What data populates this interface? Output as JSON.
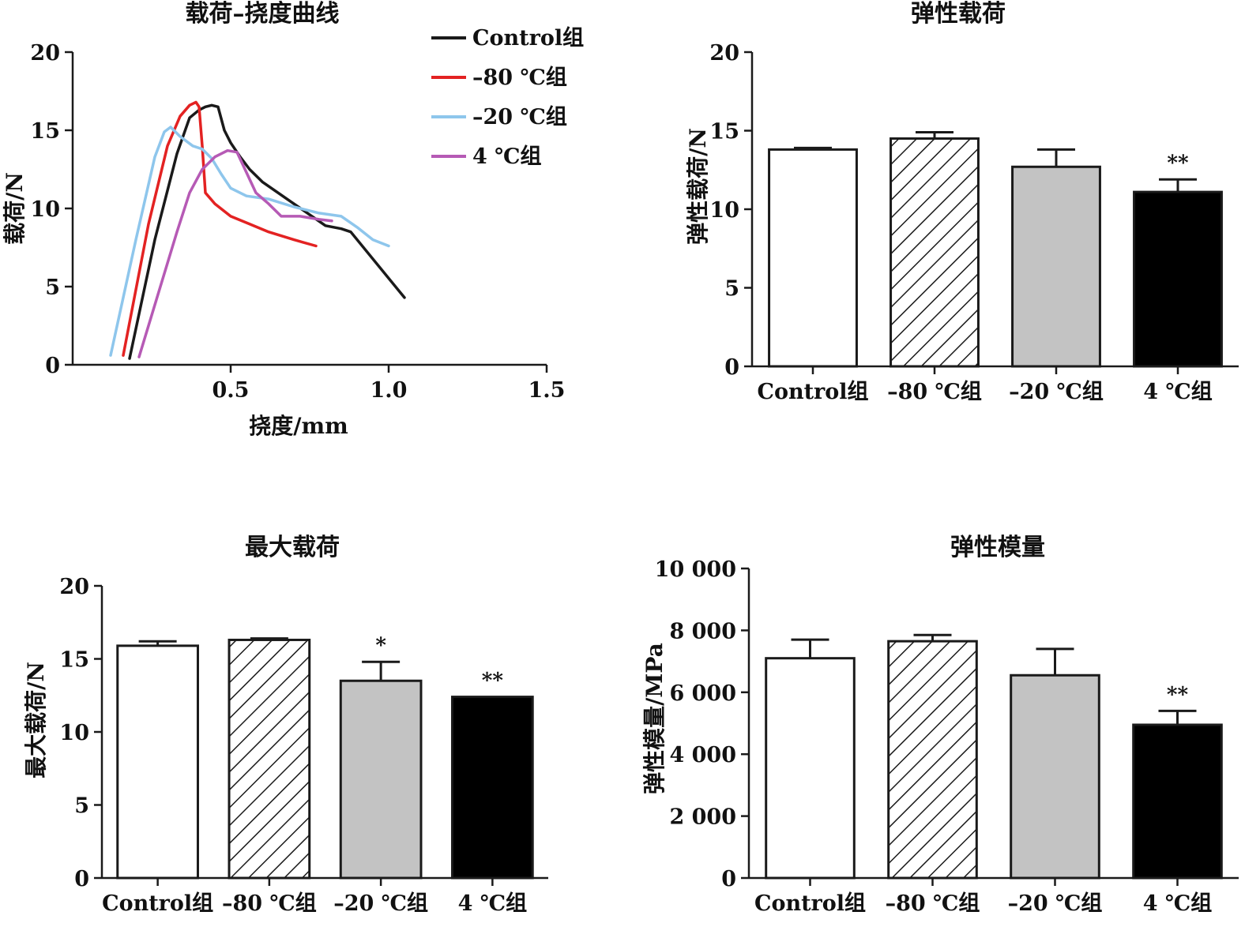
{
  "chart_data": [
    {
      "type": "line",
      "title": "载荷–挠度曲线",
      "xlabel": "挠度/mm",
      "ylabel": "载荷/N",
      "xlim": [
        0,
        1.5
      ],
      "ylim": [
        0,
        20
      ],
      "xticks": [
        0.5,
        1.0,
        1.5
      ],
      "xtick_labels": [
        "0.5",
        "1.0",
        "1.5"
      ],
      "yticks": [
        0,
        5,
        10,
        15,
        20
      ],
      "ytick_labels": [
        "0",
        "5",
        "10",
        "15",
        "20"
      ],
      "grid": false,
      "legend_position": "top-right",
      "series": [
        {
          "name": "Control组",
          "color": "#1a1a1a",
          "points": [
            [
              0.18,
              0.4
            ],
            [
              0.26,
              8
            ],
            [
              0.33,
              13.5
            ],
            [
              0.37,
              15.8
            ],
            [
              0.4,
              16.3
            ],
            [
              0.42,
              16.5
            ],
            [
              0.44,
              16.6
            ],
            [
              0.46,
              16.5
            ],
            [
              0.48,
              15
            ],
            [
              0.5,
              14.2
            ],
            [
              0.53,
              13.3
            ],
            [
              0.56,
              12.5
            ],
            [
              0.6,
              11.7
            ],
            [
              0.65,
              11
            ],
            [
              0.7,
              10.3
            ],
            [
              0.75,
              9.6
            ],
            [
              0.8,
              8.9
            ],
            [
              0.85,
              8.7
            ],
            [
              0.88,
              8.5
            ],
            [
              1.05,
              4.3
            ]
          ]
        },
        {
          "name": "–80 ℃组",
          "color": "#e32222",
          "points": [
            [
              0.16,
              0.6
            ],
            [
              0.24,
              9
            ],
            [
              0.3,
              14
            ],
            [
              0.34,
              15.9
            ],
            [
              0.37,
              16.6
            ],
            [
              0.39,
              16.8
            ],
            [
              0.4,
              16.5
            ],
            [
              0.41,
              14
            ],
            [
              0.42,
              11
            ],
            [
              0.45,
              10.3
            ],
            [
              0.5,
              9.5
            ],
            [
              0.56,
              9
            ],
            [
              0.62,
              8.5
            ],
            [
              0.7,
              8
            ],
            [
              0.77,
              7.6
            ]
          ]
        },
        {
          "name": "–20 ℃组",
          "color": "#8ec6ec",
          "points": [
            [
              0.12,
              0.6
            ],
            [
              0.2,
              8
            ],
            [
              0.26,
              13.3
            ],
            [
              0.29,
              14.9
            ],
            [
              0.31,
              15.2
            ],
            [
              0.34,
              14.6
            ],
            [
              0.38,
              14
            ],
            [
              0.41,
              13.8
            ],
            [
              0.44,
              13.2
            ],
            [
              0.47,
              12.2
            ],
            [
              0.5,
              11.3
            ],
            [
              0.55,
              10.8
            ],
            [
              0.62,
              10.6
            ],
            [
              0.7,
              10.1
            ],
            [
              0.78,
              9.7
            ],
            [
              0.85,
              9.5
            ],
            [
              0.9,
              8.8
            ],
            [
              0.95,
              8
            ],
            [
              1.0,
              7.6
            ]
          ]
        },
        {
          "name": "4 ℃组",
          "color": "#b65ab5",
          "points": [
            [
              0.21,
              0.5
            ],
            [
              0.27,
              4.5
            ],
            [
              0.33,
              8.5
            ],
            [
              0.37,
              11
            ],
            [
              0.41,
              12.5
            ],
            [
              0.45,
              13.3
            ],
            [
              0.49,
              13.7
            ],
            [
              0.52,
              13.6
            ],
            [
              0.55,
              12.3
            ],
            [
              0.58,
              11
            ],
            [
              0.62,
              10.3
            ],
            [
              0.66,
              9.5
            ],
            [
              0.72,
              9.5
            ],
            [
              0.78,
              9.3
            ],
            [
              0.82,
              9.2
            ]
          ]
        }
      ]
    },
    {
      "type": "bar",
      "title": "弹性载荷",
      "xlabel": "",
      "ylabel": "弹性载荷/N",
      "categories": [
        "Control组",
        "–80 ℃组",
        "–20 ℃组",
        "4 ℃组"
      ],
      "values": [
        13.8,
        14.5,
        12.7,
        11.1
      ],
      "errors": [
        0.1,
        0.4,
        1.1,
        0.8
      ],
      "significance": [
        "",
        "",
        "",
        "**"
      ],
      "fills": [
        "white",
        "hatch",
        "gray",
        "black"
      ],
      "ylim": [
        0,
        20
      ],
      "yticks": [
        0,
        5,
        10,
        15,
        20
      ],
      "ytick_labels": [
        "0",
        "5",
        "10",
        "15",
        "20"
      ],
      "grid": false
    },
    {
      "type": "bar",
      "title": "最大载荷",
      "xlabel": "",
      "ylabel": "最大载荷/N",
      "categories": [
        "Control组",
        "–80 ℃组",
        "–20 ℃组",
        "4 ℃组"
      ],
      "values": [
        15.9,
        16.3,
        13.5,
        12.4
      ],
      "errors": [
        0.3,
        0.1,
        1.3,
        0.0
      ],
      "significance": [
        "",
        "",
        "*",
        "**"
      ],
      "fills": [
        "white",
        "hatch",
        "gray",
        "black"
      ],
      "ylim": [
        0,
        20
      ],
      "yticks": [
        0,
        5,
        10,
        15,
        20
      ],
      "ytick_labels": [
        "0",
        "5",
        "10",
        "15",
        "20"
      ],
      "grid": false
    },
    {
      "type": "bar",
      "title": "弹性模量",
      "xlabel": "",
      "ylabel": "弹性模量/MPa",
      "categories": [
        "Control组",
        "–80 ℃组",
        "–20 ℃组",
        "4 ℃组"
      ],
      "values": [
        7100,
        7650,
        6550,
        4950
      ],
      "errors": [
        600,
        200,
        850,
        450
      ],
      "significance": [
        "",
        "",
        "",
        "**"
      ],
      "fills": [
        "white",
        "hatch",
        "gray",
        "black"
      ],
      "ylim": [
        0,
        10000
      ],
      "yticks": [
        0,
        2000,
        4000,
        6000,
        8000,
        10000
      ],
      "ytick_labels": [
        "0",
        "2 000",
        "4 000",
        "6 000",
        "8 000",
        "10 000"
      ],
      "grid": false
    }
  ],
  "colors": {
    "axis": "#1a1a1a",
    "gray_bar": "#c3c3c3",
    "black_bar": "#000000",
    "white_bar": "#ffffff"
  }
}
